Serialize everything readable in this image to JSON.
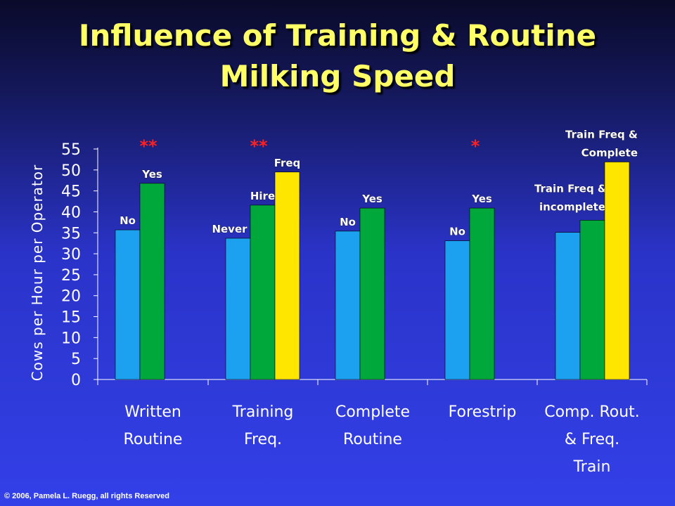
{
  "slide": {
    "title_line1": "Influence of Training & Routine",
    "title_line2": "Milking Speed",
    "copyright": "© 2006, Pamela L. Ruegg, all rights Reserved"
  },
  "colors": {
    "blue": "#1ca0f0",
    "green": "#00a83c",
    "yellow": "#ffe600",
    "axis": "#ffffff",
    "title": "#ffff66",
    "significance": "#ff2020"
  },
  "chart_data": {
    "type": "bar",
    "title": "Influence of Training & Routine Milking Speed",
    "ylabel": "Cows per Hour per Operator",
    "xlabel": "",
    "ylim": [
      0,
      55
    ],
    "yticks": [
      0,
      5,
      10,
      15,
      20,
      25,
      30,
      35,
      40,
      45,
      50,
      55
    ],
    "grid": false,
    "groups": [
      {
        "category": [
          "Written",
          "Routine"
        ],
        "significance": "**",
        "bars": [
          {
            "label": "No",
            "value": 35.7,
            "color": "blue"
          },
          {
            "label": "Yes",
            "value": 46.8,
            "color": "green"
          }
        ]
      },
      {
        "category": [
          "Training",
          "Freq."
        ],
        "significance": "**",
        "bars": [
          {
            "label": "Never",
            "value": 33.7,
            "color": "blue"
          },
          {
            "label": "Hire",
            "value": 41.6,
            "color": "green"
          },
          {
            "label": "Freq",
            "value": 49.5,
            "color": "yellow"
          }
        ]
      },
      {
        "category": [
          "Complete",
          "Routine"
        ],
        "significance": "",
        "bars": [
          {
            "label": "No",
            "value": 35.4,
            "color": "blue"
          },
          {
            "label": "Yes",
            "value": 40.9,
            "color": "green"
          }
        ]
      },
      {
        "category": [
          "Forestrip"
        ],
        "significance": "*",
        "bars": [
          {
            "label": "No",
            "value": 33.1,
            "color": "blue"
          },
          {
            "label": "Yes",
            "value": 40.9,
            "color": "green"
          }
        ]
      },
      {
        "category": [
          "Comp. Rout.",
          "& Freq.",
          "Train"
        ],
        "significance": "",
        "bars": [
          {
            "label": "",
            "value": 35.1,
            "color": "blue"
          },
          {
            "label": [
              "Train Freq &",
              "incomplete"
            ],
            "value": 38.0,
            "color": "green"
          },
          {
            "label": [
              "Train Freq &",
              "Complete"
            ],
            "value": 51.9,
            "color": "yellow"
          }
        ]
      }
    ]
  }
}
